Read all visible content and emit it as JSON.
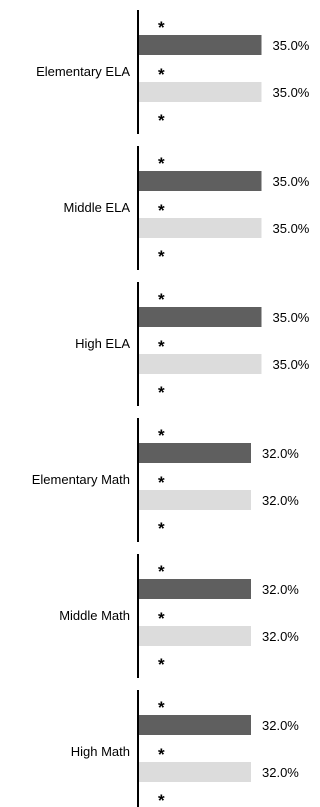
{
  "chart_data": {
    "type": "bar",
    "orientation": "horizontal",
    "colors": {
      "series_dark": "#5f5f5f",
      "series_light": "#dcdcdc",
      "axis": "#000000"
    },
    "star_marker": "*",
    "value_suffix": "%",
    "groups": [
      {
        "category": "Elementary ELA",
        "bars": [
          {
            "value": 35.0,
            "label": "35.0%",
            "color": "dark"
          },
          {
            "value": 35.0,
            "label": "35.0%",
            "color": "light"
          }
        ],
        "markers": [
          "*",
          "*",
          "*"
        ]
      },
      {
        "category": "Middle ELA",
        "bars": [
          {
            "value": 35.0,
            "label": "35.0%",
            "color": "dark"
          },
          {
            "value": 35.0,
            "label": "35.0%",
            "color": "light"
          }
        ],
        "markers": [
          "*",
          "*",
          "*"
        ]
      },
      {
        "category": "High ELA",
        "bars": [
          {
            "value": 35.0,
            "label": "35.0%",
            "color": "dark"
          },
          {
            "value": 35.0,
            "label": "35.0%",
            "color": "light"
          }
        ],
        "markers": [
          "*",
          "*",
          "*"
        ]
      },
      {
        "category": "Elementary Math",
        "bars": [
          {
            "value": 32.0,
            "label": "32.0%",
            "color": "dark"
          },
          {
            "value": 32.0,
            "label": "32.0%",
            "color": "light"
          }
        ],
        "markers": [
          "*",
          "*",
          "*"
        ]
      },
      {
        "category": "Middle Math",
        "bars": [
          {
            "value": 32.0,
            "label": "32.0%",
            "color": "dark"
          },
          {
            "value": 32.0,
            "label": "32.0%",
            "color": "light"
          }
        ],
        "markers": [
          "*",
          "*",
          "*"
        ]
      },
      {
        "category": "High Math",
        "bars": [
          {
            "value": 32.0,
            "label": "32.0%",
            "color": "dark"
          },
          {
            "value": 32.0,
            "label": "32.0%",
            "color": "light"
          }
        ],
        "markers": [
          "*",
          "*",
          "*"
        ]
      }
    ]
  }
}
